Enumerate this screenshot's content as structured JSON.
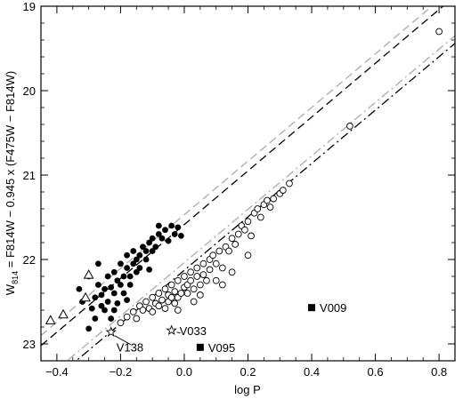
{
  "chart_data": {
    "type": "scatter",
    "title": "",
    "xlabel": "log P",
    "ylabel": "W814 = F814W − 0.945 x (F475W − F814W)",
    "ylabel_parts": {
      "w": "W",
      "sub": "814",
      "rest": " = F814W − 0.945 x (F475W − F814W)"
    },
    "xlim": [
      -0.45,
      0.85
    ],
    "ylim": [
      23.2,
      19.0
    ],
    "y_inverted": true,
    "xticks": [
      -0.4,
      -0.2,
      0.0,
      0.2,
      0.4,
      0.6,
      0.8
    ],
    "xtick_labels": [
      "−0.4",
      "−0.2",
      "0.0",
      "0.2",
      "0.4",
      "0.6",
      "0.8"
    ],
    "yticks": [
      19,
      20,
      21,
      22,
      23
    ],
    "ytick_labels": [
      "19",
      "20",
      "21",
      "22",
      "23"
    ],
    "grid": false,
    "legend": "none",
    "lines": [
      {
        "style": "dashed",
        "color": "#000000",
        "x": [
          -0.45,
          0.85
        ],
        "y": [
          23.02,
          18.88
        ]
      },
      {
        "style": "dashed",
        "color": "#aaaaaa",
        "x": [
          -0.45,
          0.85
        ],
        "y": [
          22.9,
          18.77
        ]
      },
      {
        "style": "dashdot",
        "color": "#000000",
        "x": [
          -0.45,
          0.85
        ],
        "y": [
          23.55,
          19.44
        ]
      },
      {
        "style": "dashdot",
        "color": "#aaaaaa",
        "x": [
          -0.45,
          0.85
        ],
        "y": [
          23.46,
          19.35
        ]
      }
    ],
    "series": [
      {
        "marker": "filled-circle",
        "points": [
          [
            -0.3,
            22.82
          ],
          [
            -0.29,
            22.58
          ],
          [
            -0.28,
            22.45
          ],
          [
            -0.28,
            22.7
          ],
          [
            -0.27,
            22.3
          ],
          [
            -0.26,
            22.55
          ],
          [
            -0.26,
            22.42
          ],
          [
            -0.25,
            22.6
          ],
          [
            -0.25,
            22.35
          ],
          [
            -0.24,
            22.5
          ],
          [
            -0.24,
            22.2
          ],
          [
            -0.23,
            22.7
          ],
          [
            -0.23,
            22.33
          ],
          [
            -0.22,
            22.4
          ],
          [
            -0.22,
            22.15
          ],
          [
            -0.21,
            22.25
          ],
          [
            -0.21,
            22.52
          ],
          [
            -0.2,
            22.3
          ],
          [
            -0.2,
            22.05
          ],
          [
            -0.19,
            22.2
          ],
          [
            -0.19,
            22.4
          ],
          [
            -0.18,
            22.1
          ],
          [
            -0.18,
            21.95
          ],
          [
            -0.17,
            22.3
          ],
          [
            -0.17,
            22.2
          ],
          [
            -0.16,
            22.05
          ],
          [
            -0.16,
            21.9
          ],
          [
            -0.15,
            22.15
          ],
          [
            -0.15,
            22.0
          ],
          [
            -0.14,
            21.95
          ],
          [
            -0.14,
            22.1
          ],
          [
            -0.13,
            21.85
          ],
          [
            -0.12,
            22.0
          ],
          [
            -0.12,
            21.9
          ],
          [
            -0.11,
            21.8
          ],
          [
            -0.1,
            21.9
          ],
          [
            -0.1,
            21.75
          ],
          [
            -0.09,
            21.85
          ],
          [
            -0.08,
            21.7
          ],
          [
            -0.08,
            21.6
          ],
          [
            -0.07,
            21.75
          ],
          [
            -0.06,
            21.65
          ],
          [
            -0.05,
            21.78
          ],
          [
            -0.04,
            21.6
          ],
          [
            -0.03,
            21.7
          ],
          [
            -0.02,
            21.62
          ],
          [
            -0.01,
            21.72
          ],
          [
            -0.3,
            22.2
          ],
          [
            -0.33,
            22.35
          ],
          [
            -0.32,
            22.5
          ],
          [
            -0.27,
            22.05
          ],
          [
            -0.22,
            22.6
          ],
          [
            -0.18,
            22.48
          ],
          [
            -0.11,
            22.12
          ]
        ]
      },
      {
        "marker": "open-circle",
        "points": [
          [
            -0.2,
            22.75
          ],
          [
            -0.18,
            22.68
          ],
          [
            -0.16,
            22.62
          ],
          [
            -0.15,
            22.7
          ],
          [
            -0.14,
            22.55
          ],
          [
            -0.13,
            22.6
          ],
          [
            -0.12,
            22.5
          ],
          [
            -0.11,
            22.58
          ],
          [
            -0.1,
            22.45
          ],
          [
            -0.1,
            22.62
          ],
          [
            -0.09,
            22.52
          ],
          [
            -0.08,
            22.4
          ],
          [
            -0.08,
            22.55
          ],
          [
            -0.07,
            22.48
          ],
          [
            -0.06,
            22.35
          ],
          [
            -0.06,
            22.58
          ],
          [
            -0.05,
            22.42
          ],
          [
            -0.05,
            22.5
          ],
          [
            -0.04,
            22.3
          ],
          [
            -0.04,
            22.45
          ],
          [
            -0.03,
            22.38
          ],
          [
            -0.03,
            22.52
          ],
          [
            -0.02,
            22.25
          ],
          [
            -0.02,
            22.45
          ],
          [
            -0.01,
            22.4
          ],
          [
            0.0,
            22.33
          ],
          [
            0.0,
            22.2
          ],
          [
            0.01,
            22.4
          ],
          [
            0.01,
            22.3
          ],
          [
            0.02,
            22.25
          ],
          [
            0.02,
            22.15
          ],
          [
            0.03,
            22.35
          ],
          [
            0.04,
            22.2
          ],
          [
            0.04,
            22.1
          ],
          [
            0.05,
            22.3
          ],
          [
            0.06,
            22.05
          ],
          [
            0.06,
            22.18
          ],
          [
            0.07,
            22.25
          ],
          [
            0.08,
            22.0
          ],
          [
            0.08,
            22.12
          ],
          [
            0.09,
            21.95
          ],
          [
            0.1,
            22.05
          ],
          [
            0.11,
            21.9
          ],
          [
            0.12,
            22.1
          ],
          [
            0.13,
            21.85
          ],
          [
            0.14,
            21.9
          ],
          [
            0.15,
            21.75
          ],
          [
            0.16,
            21.82
          ],
          [
            0.17,
            21.7
          ],
          [
            0.18,
            21.6
          ],
          [
            0.19,
            21.65
          ],
          [
            0.2,
            21.55
          ],
          [
            0.21,
            21.72
          ],
          [
            0.22,
            21.45
          ],
          [
            0.23,
            21.4
          ],
          [
            0.24,
            21.5
          ],
          [
            0.25,
            21.35
          ],
          [
            0.26,
            21.3
          ],
          [
            0.27,
            21.38
          ],
          [
            0.28,
            21.28
          ],
          [
            0.3,
            21.22
          ],
          [
            0.31,
            21.18
          ],
          [
            0.33,
            21.1
          ],
          [
            0.12,
            22.3
          ],
          [
            0.05,
            22.42
          ],
          [
            0.15,
            22.15
          ],
          [
            0.2,
            21.95
          ],
          [
            0.52,
            20.42
          ],
          [
            0.8,
            19.3
          ],
          [
            -0.02,
            22.6
          ],
          [
            0.03,
            22.5
          ],
          [
            0.1,
            22.25
          ]
        ]
      },
      {
        "marker": "open-triangle",
        "points": [
          [
            -0.42,
            22.72
          ],
          [
            -0.38,
            22.65
          ],
          [
            -0.31,
            22.45
          ],
          [
            -0.3,
            22.18
          ]
        ]
      },
      {
        "marker": "open-star",
        "points": [
          [
            -0.23,
            22.86
          ],
          [
            -0.04,
            22.84
          ]
        ]
      },
      {
        "marker": "filled-square",
        "points": [
          [
            0.4,
            22.57
          ],
          [
            0.05,
            23.04
          ]
        ]
      }
    ],
    "annotations": [
      {
        "text": "V009",
        "x": 0.4,
        "y": 22.57
      },
      {
        "text": "V033",
        "x": -0.04,
        "y": 22.84
      },
      {
        "text": "V095",
        "x": 0.05,
        "y": 23.04
      },
      {
        "text": "V138",
        "x": -0.23,
        "y": 22.86
      }
    ]
  }
}
